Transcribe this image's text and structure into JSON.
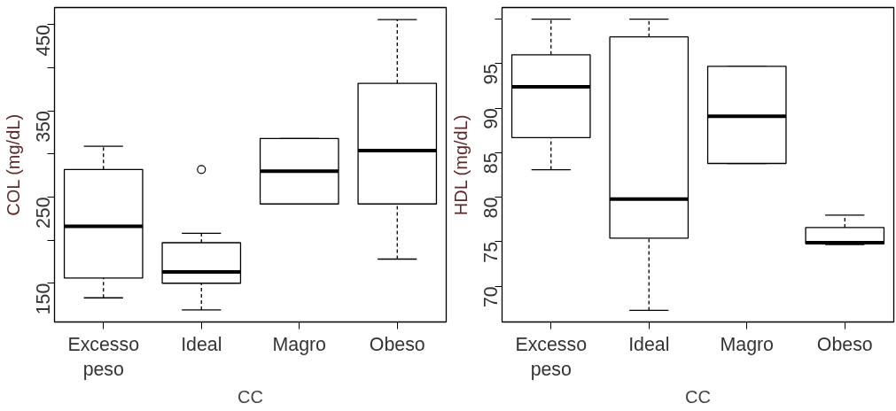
{
  "chart_data": [
    {
      "type": "box",
      "categories": [
        "Excesso peso",
        "Ideal",
        "Magro",
        "Obeso"
      ],
      "xlabel": "CC",
      "ylabel": "COL (mg/dL)",
      "ylim": [
        105,
        470
      ],
      "yticks": [
        150,
        {
          "value": 200,
          "label": null
        },
        250,
        {
          "value": 300,
          "label": null
        },
        350,
        {
          "value": 400,
          "label": null
        },
        450
      ],
      "grid": false,
      "boxes": [
        {
          "low": 133,
          "q1": 156,
          "median": 216,
          "q3": 282,
          "high": 309
        },
        {
          "low": 119,
          "q1": 150,
          "median": 163,
          "q3": 197,
          "high": 208,
          "outliers": [
            282
          ]
        },
        {
          "low": 242,
          "q1": 242,
          "median": 280,
          "q3": 318,
          "high": 318
        },
        {
          "low": 178,
          "q1": 242,
          "median": 304,
          "q3": 382,
          "high": 456
        }
      ]
    },
    {
      "type": "box",
      "categories": [
        "Excesso peso",
        "Ideal",
        "Magro",
        "Obeso"
      ],
      "xlabel": "CC",
      "ylabel": "HDL (mg/dL)",
      "ylim": [
        66,
        101.3
      ],
      "yticks": [
        70,
        75,
        80,
        85,
        90,
        95,
        {
          "value": 100,
          "label": null
        }
      ],
      "grid": false,
      "boxes": [
        {
          "low": 83.1,
          "q1": 86.7,
          "median": 92.4,
          "q3": 96.0,
          "high": 100.0
        },
        {
          "low": 67.3,
          "q1": 75.4,
          "median": 79.8,
          "q3": 98.0,
          "high": 100.0
        },
        {
          "low": 83.8,
          "q1": 83.8,
          "median": 89.1,
          "q3": 94.7,
          "high": 94.7
        },
        {
          "low": 74.7,
          "q1": 74.8,
          "median": 74.9,
          "q3": 76.6,
          "high": 78.0
        }
      ]
    }
  ]
}
